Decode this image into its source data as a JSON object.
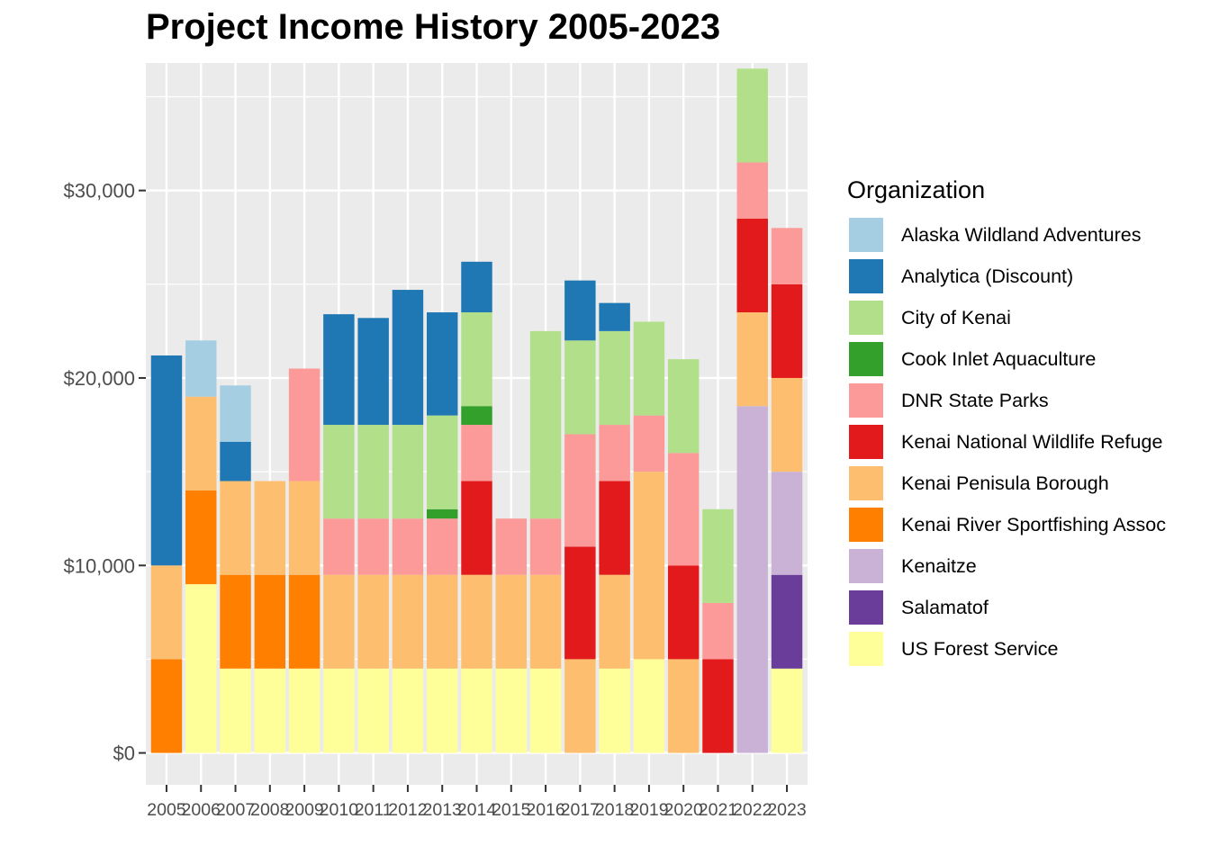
{
  "chart_data": {
    "type": "bar",
    "stacked": true,
    "title": "Project Income History 2005-2023",
    "xlabel": "",
    "ylabel": "",
    "ylim": [
      -1700,
      36800
    ],
    "yticks": [
      0,
      10000,
      20000,
      30000
    ],
    "ytick_labels": [
      "$0",
      "$10,000",
      "$20,000",
      "$30,000"
    ],
    "grid": true,
    "legend_title": "Organization",
    "legend_position": "right",
    "categories": [
      "2005",
      "2006",
      "2007",
      "2008",
      "2009",
      "2010",
      "2011",
      "2012",
      "2013",
      "2014",
      "2015",
      "2016",
      "2017",
      "2018",
      "2019",
      "2020",
      "2021",
      "2022",
      "2023"
    ],
    "stack_order": [
      "US Forest Service",
      "Salamatof",
      "Kenaitze",
      "Kenai River Sportfishing Assoc",
      "Kenai Penisula Borough",
      "Kenai National Wildlife Refuge",
      "DNR State Parks",
      "Cook Inlet Aquaculture",
      "City of Kenai",
      "Analytica (Discount)",
      "Alaska Wildland Adventures"
    ],
    "series": [
      {
        "name": "Alaska Wildland Adventures",
        "color": "#A6CEE3",
        "values": [
          0,
          3000,
          3000,
          0,
          0,
          0,
          0,
          0,
          0,
          0,
          0,
          0,
          0,
          0,
          0,
          0,
          0,
          0,
          0
        ]
      },
      {
        "name": "Analytica (Discount)",
        "color": "#1F78B4",
        "values": [
          11200,
          0,
          2100,
          0,
          0,
          5900,
          5700,
          7200,
          5500,
          2700,
          0,
          0,
          3200,
          1500,
          0,
          0,
          0,
          0,
          0
        ]
      },
      {
        "name": "City of Kenai",
        "color": "#B2DF8A",
        "values": [
          0,
          0,
          0,
          0,
          0,
          5000,
          5000,
          5000,
          5000,
          5000,
          0,
          10000,
          5000,
          5000,
          5000,
          5000,
          5000,
          5000,
          0
        ]
      },
      {
        "name": "Cook Inlet Aquaculture",
        "color": "#33A02C",
        "values": [
          0,
          0,
          0,
          0,
          0,
          0,
          0,
          0,
          500,
          1000,
          0,
          0,
          0,
          0,
          0,
          0,
          0,
          0,
          0
        ]
      },
      {
        "name": "DNR State Parks",
        "color": "#FB9A99",
        "values": [
          0,
          0,
          0,
          0,
          6000,
          3000,
          3000,
          3000,
          3000,
          3000,
          3000,
          3000,
          6000,
          3000,
          3000,
          6000,
          3000,
          3000,
          3000
        ]
      },
      {
        "name": "Kenai National Wildlife Refuge",
        "color": "#E31A1C",
        "values": [
          0,
          0,
          0,
          0,
          0,
          0,
          0,
          0,
          0,
          5000,
          0,
          0,
          6000,
          5000,
          0,
          5000,
          5000,
          5000,
          5000
        ]
      },
      {
        "name": "Kenai Penisula Borough",
        "color": "#FDBF6F",
        "values": [
          5000,
          5000,
          5000,
          5000,
          5000,
          5000,
          5000,
          5000,
          5000,
          5000,
          5000,
          5000,
          5000,
          5000,
          10000,
          5000,
          0,
          5000,
          5000
        ]
      },
      {
        "name": "Kenai River Sportfishing Assoc",
        "color": "#FF7F00",
        "values": [
          5000,
          5000,
          5000,
          5000,
          5000,
          0,
          0,
          0,
          0,
          0,
          0,
          0,
          0,
          0,
          0,
          0,
          0,
          0,
          0
        ]
      },
      {
        "name": "Kenaitze",
        "color": "#CAB2D6",
        "values": [
          0,
          0,
          0,
          0,
          0,
          0,
          0,
          0,
          0,
          0,
          0,
          0,
          0,
          0,
          0,
          0,
          0,
          18500,
          5500
        ]
      },
      {
        "name": "Salamatof",
        "color": "#6A3D9A",
        "values": [
          0,
          0,
          0,
          0,
          0,
          0,
          0,
          0,
          0,
          0,
          0,
          0,
          0,
          0,
          0,
          0,
          0,
          0,
          5000
        ]
      },
      {
        "name": "US Forest Service",
        "color": "#FFFF99",
        "values": [
          0,
          9000,
          4500,
          4500,
          4500,
          4500,
          4500,
          4500,
          4500,
          4500,
          4500,
          4500,
          0,
          4500,
          5000,
          0,
          0,
          0,
          4500
        ]
      }
    ]
  }
}
